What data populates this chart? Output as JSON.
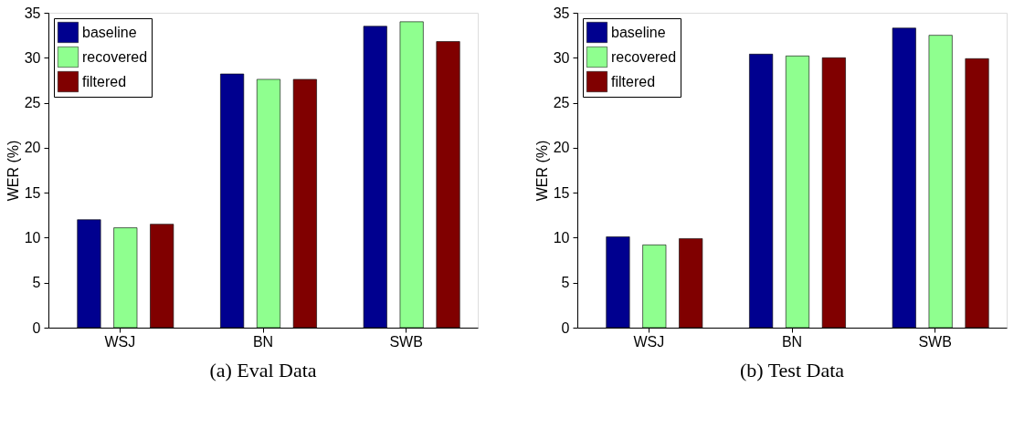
{
  "chart_data": [
    {
      "type": "bar",
      "title": "(a) Eval Data",
      "ylabel": "WER (%)",
      "categories": [
        "WSJ",
        "BN",
        "SWB"
      ],
      "series": [
        {
          "name": "baseline",
          "color": "#00008f",
          "values": [
            12.0,
            28.2,
            33.5
          ]
        },
        {
          "name": "recovered",
          "color": "#8fff8f",
          "values": [
            11.1,
            27.6,
            34.0
          ]
        },
        {
          "name": "filtered",
          "color": "#800000",
          "values": [
            11.5,
            27.6,
            31.8
          ]
        }
      ],
      "ylim": [
        0,
        35
      ],
      "yticks": [
        0,
        5,
        10,
        15,
        20,
        25,
        30,
        35
      ],
      "legend": "top left",
      "grid": false
    },
    {
      "type": "bar",
      "title": "(b) Test Data",
      "ylabel": "WER (%)",
      "categories": [
        "WSJ",
        "BN",
        "SWB"
      ],
      "series": [
        {
          "name": "baseline",
          "color": "#00008f",
          "values": [
            10.1,
            30.4,
            33.3
          ]
        },
        {
          "name": "recovered",
          "color": "#8fff8f",
          "values": [
            9.2,
            30.2,
            32.5
          ]
        },
        {
          "name": "filtered",
          "color": "#800000",
          "values": [
            9.9,
            30.0,
            29.9
          ]
        }
      ],
      "ylim": [
        0,
        35
      ],
      "yticks": [
        0,
        5,
        10,
        15,
        20,
        25,
        30,
        35
      ],
      "legend": "top left",
      "grid": false
    }
  ]
}
